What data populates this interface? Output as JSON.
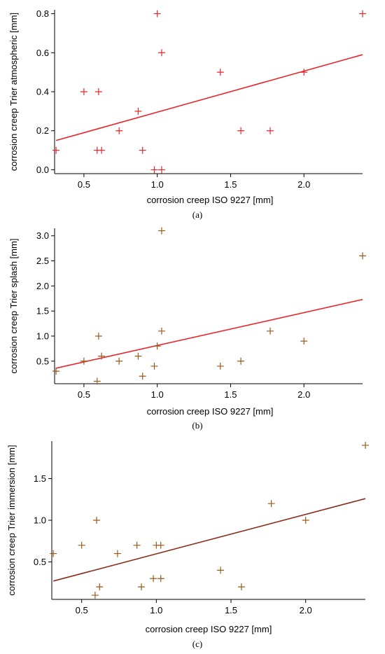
{
  "chart_data": [
    {
      "type": "scatter",
      "panel_label": "(a)",
      "xlabel": "corrosion creep ISO 9227 [mm]",
      "ylabel": "corrosion creep Trier atmospheric [mm]",
      "xlim": [
        0.3,
        2.4
      ],
      "ylim": [
        -0.02,
        0.82
      ],
      "xticks": [
        {
          "value": 0.5,
          "label": "0.5"
        },
        {
          "value": 1.0,
          "label": "1.0"
        },
        {
          "value": 1.5,
          "label": "1.5"
        },
        {
          "value": 2.0,
          "label": "2.0"
        }
      ],
      "yticks": [
        {
          "value": 0.0,
          "label": "0.0"
        },
        {
          "value": 0.2,
          "label": "0.2"
        },
        {
          "value": 0.4,
          "label": "0.4"
        },
        {
          "value": 0.6,
          "label": "0.6"
        },
        {
          "value": 0.8,
          "label": "0.8"
        }
      ],
      "marker_color": "#e8262a",
      "line_color": "#e8262a",
      "points": [
        {
          "x": 0.31,
          "y": 0.1
        },
        {
          "x": 0.5,
          "y": 0.4
        },
        {
          "x": 0.59,
          "y": 0.1
        },
        {
          "x": 0.6,
          "y": 0.4
        },
        {
          "x": 0.62,
          "y": 0.1
        },
        {
          "x": 0.74,
          "y": 0.2
        },
        {
          "x": 0.87,
          "y": 0.3
        },
        {
          "x": 0.9,
          "y": 0.1
        },
        {
          "x": 0.98,
          "y": 0.0
        },
        {
          "x": 1.0,
          "y": 0.8
        },
        {
          "x": 1.03,
          "y": 0.6
        },
        {
          "x": 1.03,
          "y": 0.0
        },
        {
          "x": 1.43,
          "y": 0.5
        },
        {
          "x": 1.57,
          "y": 0.2
        },
        {
          "x": 1.77,
          "y": 0.2
        },
        {
          "x": 2.0,
          "y": 0.5
        },
        {
          "x": 2.4,
          "y": 0.8
        }
      ],
      "fit_line": {
        "x": [
          0.31,
          2.4
        ],
        "y": [
          0.15,
          0.59
        ]
      }
    },
    {
      "type": "scatter",
      "panel_label": "(b)",
      "xlabel": "corrosion creep ISO 9227 [mm]",
      "ylabel": "corrosion creep Trier splash [mm]",
      "xlim": [
        0.3,
        2.4
      ],
      "ylim": [
        0.05,
        3.15
      ],
      "xticks": [
        {
          "value": 0.5,
          "label": "0.5"
        },
        {
          "value": 1.0,
          "label": "1.0"
        },
        {
          "value": 1.5,
          "label": "1.5"
        },
        {
          "value": 2.0,
          "label": "2.0"
        }
      ],
      "yticks": [
        {
          "value": 0.5,
          "label": "0.5"
        },
        {
          "value": 1.0,
          "label": "1.0"
        },
        {
          "value": 1.5,
          "label": "1.5"
        },
        {
          "value": 2.0,
          "label": "2.0"
        },
        {
          "value": 2.5,
          "label": "2.5"
        },
        {
          "value": 3.0,
          "label": "3.0"
        }
      ],
      "marker_color": "#9a5a1a",
      "line_color": "#e8262a",
      "points": [
        {
          "x": 0.31,
          "y": 0.3
        },
        {
          "x": 0.5,
          "y": 0.5
        },
        {
          "x": 0.59,
          "y": 0.1
        },
        {
          "x": 0.6,
          "y": 1.0
        },
        {
          "x": 0.62,
          "y": 0.6
        },
        {
          "x": 0.74,
          "y": 0.5
        },
        {
          "x": 0.87,
          "y": 0.6
        },
        {
          "x": 0.9,
          "y": 0.2
        },
        {
          "x": 0.98,
          "y": 0.4
        },
        {
          "x": 1.0,
          "y": 0.8
        },
        {
          "x": 1.03,
          "y": 3.1
        },
        {
          "x": 1.03,
          "y": 1.1
        },
        {
          "x": 1.43,
          "y": 0.4
        },
        {
          "x": 1.57,
          "y": 0.5
        },
        {
          "x": 1.77,
          "y": 1.1
        },
        {
          "x": 2.0,
          "y": 0.9
        },
        {
          "x": 2.4,
          "y": 2.6
        }
      ],
      "fit_line": {
        "x": [
          0.31,
          2.4
        ],
        "y": [
          0.36,
          1.73
        ]
      }
    },
    {
      "type": "scatter",
      "panel_label": "(c)",
      "xlabel": "corrosion creep ISO 9227 [mm]",
      "ylabel": "corrosion creep Trier immersion [mm]",
      "xlim": [
        0.3,
        2.4
      ],
      "ylim": [
        0.05,
        1.95
      ],
      "xticks": [
        {
          "value": 0.5,
          "label": "0.5"
        },
        {
          "value": 1.0,
          "label": "1.0"
        },
        {
          "value": 1.5,
          "label": "1.5"
        },
        {
          "value": 2.0,
          "label": "2.0"
        }
      ],
      "yticks": [
        {
          "value": 0.5,
          "label": "0.5"
        },
        {
          "value": 1.0,
          "label": "1.0"
        },
        {
          "value": 1.5,
          "label": "1.5"
        }
      ],
      "marker_color": "#9a5a1a",
      "line_color": "#8b2e1a",
      "points": [
        {
          "x": 0.31,
          "y": 0.6
        },
        {
          "x": 0.5,
          "y": 0.7
        },
        {
          "x": 0.59,
          "y": 0.1
        },
        {
          "x": 0.6,
          "y": 1.0
        },
        {
          "x": 0.62,
          "y": 0.2
        },
        {
          "x": 0.74,
          "y": 0.6
        },
        {
          "x": 0.87,
          "y": 0.7
        },
        {
          "x": 0.9,
          "y": 0.2
        },
        {
          "x": 0.98,
          "y": 0.3
        },
        {
          "x": 1.0,
          "y": 0.7
        },
        {
          "x": 1.03,
          "y": 0.7
        },
        {
          "x": 1.03,
          "y": 0.3
        },
        {
          "x": 1.43,
          "y": 0.4
        },
        {
          "x": 1.57,
          "y": 0.2
        },
        {
          "x": 1.77,
          "y": 1.2
        },
        {
          "x": 2.0,
          "y": 1.0
        },
        {
          "x": 2.4,
          "y": 1.9
        }
      ],
      "fit_line": {
        "x": [
          0.31,
          2.4
        ],
        "y": [
          0.27,
          1.26
        ]
      }
    }
  ]
}
